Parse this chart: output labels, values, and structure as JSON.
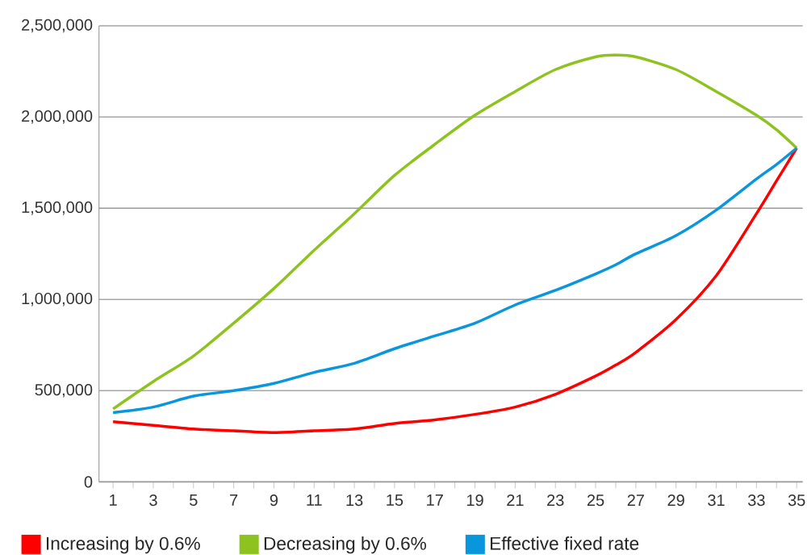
{
  "chart_data": {
    "type": "line",
    "x": [
      1,
      3,
      5,
      7,
      9,
      11,
      13,
      15,
      17,
      19,
      21,
      23,
      25,
      26,
      27,
      29,
      31,
      33,
      34,
      35
    ],
    "series": [
      {
        "name": "Increasing by 0.6%",
        "color": "#ff0000",
        "values": [
          330000,
          310000,
          290000,
          280000,
          270000,
          280000,
          290000,
          320000,
          340000,
          370000,
          410000,
          480000,
          580000,
          640000,
          710000,
          890000,
          1130000,
          1470000,
          1650000,
          1830000
        ]
      },
      {
        "name": "Decreasing by 0.6%",
        "color": "#8dc21f",
        "values": [
          400000,
          550000,
          690000,
          870000,
          1060000,
          1270000,
          1470000,
          1680000,
          1850000,
          2010000,
          2140000,
          2260000,
          2330000,
          2340000,
          2330000,
          2260000,
          2140000,
          2010000,
          1930000,
          1830000
        ]
      },
      {
        "name": "Effective fixed rate",
        "color": "#0a96dc",
        "values": [
          380000,
          410000,
          470000,
          500000,
          540000,
          600000,
          650000,
          730000,
          800000,
          870000,
          970000,
          1050000,
          1140000,
          1190000,
          1250000,
          1350000,
          1490000,
          1660000,
          1740000,
          1830000
        ]
      }
    ],
    "xlim": [
      0.3,
      35.3
    ],
    "xticks": [
      1,
      {
        "value": 2,
        "label": null
      },
      3,
      {
        "value": 4,
        "label": null
      },
      5,
      {
        "value": 6,
        "label": null
      },
      7,
      {
        "value": 8,
        "label": null
      },
      9,
      {
        "value": 10,
        "label": null
      },
      11,
      {
        "value": 12,
        "label": null
      },
      13,
      {
        "value": 14,
        "label": null
      },
      15,
      {
        "value": 16,
        "label": null
      },
      17,
      {
        "value": 18,
        "label": null
      },
      19,
      {
        "value": 20,
        "label": null
      },
      21,
      {
        "value": 22,
        "label": null
      },
      23,
      {
        "value": 24,
        "label": null
      },
      25,
      {
        "value": 26,
        "label": null
      },
      27,
      {
        "value": 28,
        "label": null
      },
      29,
      {
        "value": 30,
        "label": null
      },
      31,
      {
        "value": 32,
        "label": null
      },
      33,
      {
        "value": 34,
        "label": null
      },
      35
    ],
    "ylim": [
      0,
      2500000
    ],
    "yticks": [
      0,
      {
        "value": 500000,
        "label": "500,000"
      },
      {
        "value": 1000000,
        "label": "1,000,000"
      },
      {
        "value": 1500000,
        "label": "1,500,000"
      },
      {
        "value": 2000000,
        "label": "2,000,000"
      },
      {
        "value": 2500000,
        "label": "2,500,000"
      }
    ],
    "grid": "y",
    "legend": "bottom",
    "marker": "none",
    "line_style": "solid"
  }
}
